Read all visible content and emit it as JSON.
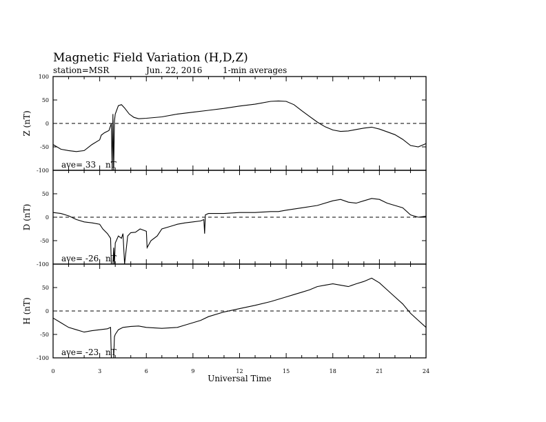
{
  "figure": {
    "title": "Magnetic Field Variation (H,D,Z)",
    "station": "station=MSR",
    "date": "Jun. 22, 2016",
    "averaging": "1-min averages",
    "xlabel": "Universal Time"
  },
  "chart_data": [
    {
      "type": "line",
      "panel": "Z",
      "ylabel": "Z (nT)",
      "ylim": [
        -100,
        100
      ],
      "yticks": [
        100,
        50,
        0,
        -50,
        -100
      ],
      "xlim": [
        0,
        24
      ],
      "xticks": [
        0,
        3,
        6,
        9,
        12,
        15,
        18,
        21,
        24
      ],
      "reference_line": 0,
      "annotation": {
        "ave_label": "ave=",
        "ave_value": "33",
        "unit": "nT"
      },
      "x": [
        0,
        0.5,
        1,
        1.5,
        2,
        2.5,
        3,
        3.1,
        3.3,
        3.6,
        3.75,
        3.8,
        3.85,
        3.9,
        3.95,
        4.0,
        4.2,
        4.4,
        4.6,
        4.9,
        5.2,
        5.5,
        6,
        7,
        8,
        9,
        10,
        11,
        12,
        13,
        14,
        14.5,
        15,
        15.5,
        16,
        16.5,
        17,
        17.5,
        18,
        18.5,
        19,
        19.5,
        20,
        20.5,
        21,
        21.5,
        22,
        22.5,
        23,
        23.5,
        24
      ],
      "y": [
        -45,
        -55,
        -58,
        -60,
        -58,
        -45,
        -35,
        -25,
        -20,
        -15,
        0,
        -100,
        20,
        -100,
        5,
        20,
        38,
        40,
        33,
        20,
        13,
        10,
        11,
        14,
        20,
        24,
        28,
        32,
        37,
        41,
        47,
        48,
        47,
        40,
        27,
        15,
        3,
        -7,
        -14,
        -17,
        -16,
        -13,
        -10,
        -8,
        -12,
        -18,
        -24,
        -34,
        -47,
        -50,
        -43
      ]
    },
    {
      "type": "line",
      "panel": "D",
      "ylabel": "D (nT)",
      "ylim": [
        -100,
        100
      ],
      "yticks": [
        50,
        0,
        -50,
        -100
      ],
      "xlim": [
        0,
        24
      ],
      "xticks": [
        0,
        3,
        6,
        9,
        12,
        15,
        18,
        21,
        24
      ],
      "reference_line": 0,
      "annotation": {
        "ave_label": "ave=",
        "ave_value": "-26",
        "unit": "nT"
      },
      "x": [
        0,
        0.5,
        1,
        1.5,
        2,
        2.5,
        3,
        3.2,
        3.5,
        3.7,
        3.75,
        3.8,
        3.85,
        3.9,
        3.95,
        4.0,
        4.2,
        4.4,
        4.5,
        4.6,
        4.8,
        5.0,
        5.3,
        5.6,
        6.0,
        6.05,
        6.3,
        6.7,
        7.0,
        7.5,
        8.0,
        8.5,
        9.0,
        9.5,
        9.7,
        9.75,
        9.8,
        10,
        11,
        12,
        13,
        14,
        14.5,
        15,
        16,
        17,
        18,
        18.5,
        19,
        19.5,
        20,
        20.5,
        21,
        21.5,
        22,
        22.5,
        23,
        23.5,
        24
      ],
      "y": [
        10,
        8,
        3,
        -5,
        -10,
        -12,
        -15,
        -25,
        -35,
        -45,
        -100,
        -100,
        -100,
        -65,
        -100,
        -55,
        -40,
        -45,
        -35,
        -100,
        -40,
        -33,
        -32,
        -25,
        -30,
        -65,
        -50,
        -40,
        -25,
        -20,
        -15,
        -12,
        -10,
        -8,
        -5,
        -35,
        5,
        8,
        8,
        10,
        10,
        12,
        12,
        15,
        20,
        25,
        35,
        38,
        32,
        30,
        35,
        40,
        38,
        30,
        25,
        20,
        5,
        0,
        2
      ]
    },
    {
      "type": "line",
      "panel": "H",
      "ylabel": "H (nT)",
      "ylim": [
        -100,
        100
      ],
      "yticks": [
        50,
        0,
        -50,
        -100
      ],
      "xlim": [
        0,
        24
      ],
      "xticks": [
        0,
        3,
        6,
        9,
        12,
        15,
        18,
        21,
        24
      ],
      "reference_line": 0,
      "annotation": {
        "ave_label": "ave=",
        "ave_value": "-23",
        "unit": "nT"
      },
      "x": [
        0,
        0.5,
        1,
        1.5,
        2,
        2.5,
        3,
        3.5,
        3.7,
        3.75,
        3.8,
        3.85,
        3.9,
        3.95,
        4.0,
        4.2,
        4.5,
        5,
        5.5,
        6,
        7,
        8,
        8.5,
        9,
        9.5,
        10,
        11,
        12,
        13,
        14,
        15,
        15.5,
        16,
        16.5,
        17,
        17.5,
        18,
        18.5,
        19,
        19.5,
        20,
        20.5,
        21,
        21.5,
        22,
        22.5,
        23,
        23.5,
        24
      ],
      "y": [
        -15,
        -25,
        -35,
        -40,
        -45,
        -42,
        -40,
        -38,
        -35,
        -100,
        -100,
        -100,
        -100,
        -55,
        -50,
        -40,
        -35,
        -33,
        -32,
        -35,
        -37,
        -35,
        -30,
        -25,
        -20,
        -12,
        -2,
        5,
        12,
        20,
        30,
        35,
        40,
        45,
        52,
        55,
        58,
        55,
        52,
        58,
        63,
        70,
        60,
        45,
        30,
        15,
        -5,
        -20,
        -35
      ]
    }
  ]
}
